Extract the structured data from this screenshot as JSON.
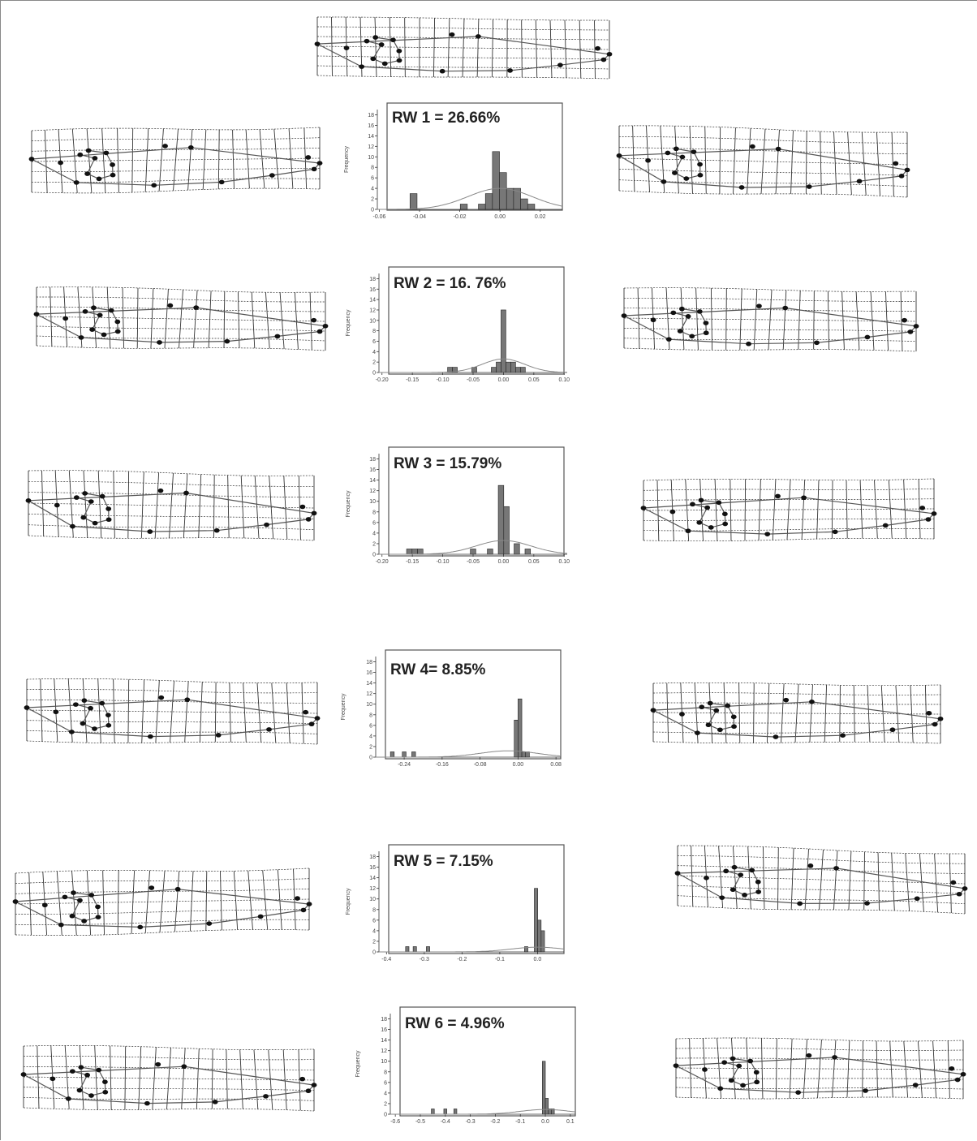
{
  "chart_data": [
    {
      "type": "bar",
      "title": "RW 1 = 26.66%",
      "ylabel": "Frequency",
      "xlabel": "",
      "xticks": [
        -0.06,
        -0.04,
        -0.02,
        0.0,
        0.02
      ],
      "xtick_labels": [
        "-0.06",
        "-0.04",
        "-0.02",
        "0.00",
        "0.02"
      ],
      "yticks": [
        0,
        2,
        4,
        6,
        8,
        10,
        12,
        14,
        16,
        18
      ],
      "xlim": [
        -0.061,
        0.031
      ],
      "ylim": [
        0,
        19
      ],
      "bin_width": 0.0035,
      "bars": [
        {
          "x": -0.043,
          "y": 3
        },
        {
          "x": -0.018,
          "y": 1
        },
        {
          "x": -0.009,
          "y": 1
        },
        {
          "x": -0.0055,
          "y": 3
        },
        {
          "x": -0.002,
          "y": 11
        },
        {
          "x": 0.0015,
          "y": 7
        },
        {
          "x": 0.005,
          "y": 4
        },
        {
          "x": 0.0085,
          "y": 4
        },
        {
          "x": 0.012,
          "y": 2
        },
        {
          "x": 0.0155,
          "y": 1
        }
      ],
      "normal_curve": {
        "mean": 0.0,
        "peak": 4.0,
        "sd": 0.016
      }
    },
    {
      "type": "bar",
      "title": "RW 2 = 16. 76%",
      "ylabel": "Frequency",
      "xlabel": "",
      "xticks": [
        -0.2,
        -0.15,
        -0.1,
        -0.05,
        0.0,
        0.05,
        0.1
      ],
      "xtick_labels": [
        "-0.20",
        "-0.15",
        "-0.10",
        "-0.05",
        "0.00",
        "0.05",
        "0.10"
      ],
      "yticks": [
        0,
        2,
        4,
        6,
        8,
        10,
        12,
        14,
        16,
        18
      ],
      "xlim": [
        -0.205,
        0.105
      ],
      "ylim": [
        0,
        19
      ],
      "bin_width": 0.008,
      "bars": [
        {
          "x": -0.088,
          "y": 1
        },
        {
          "x": -0.08,
          "y": 1
        },
        {
          "x": -0.048,
          "y": 1
        },
        {
          "x": -0.016,
          "y": 1
        },
        {
          "x": -0.008,
          "y": 2
        },
        {
          "x": 0.0,
          "y": 12
        },
        {
          "x": 0.008,
          "y": 2
        },
        {
          "x": 0.016,
          "y": 2
        },
        {
          "x": 0.024,
          "y": 1
        },
        {
          "x": 0.032,
          "y": 1
        }
      ],
      "normal_curve": {
        "mean": 0.0,
        "peak": 2.6,
        "sd": 0.035
      }
    },
    {
      "type": "bar",
      "title": "RW 3 = 15.79%",
      "ylabel": "Frequency",
      "xlabel": "",
      "xticks": [
        -0.2,
        -0.15,
        -0.1,
        -0.05,
        0.0,
        0.05,
        0.1
      ],
      "xtick_labels": [
        "-0.20",
        "-0.15",
        "-0.10",
        "-0.05",
        "0.00",
        "0.05",
        "0.10"
      ],
      "yticks": [
        0,
        2,
        4,
        6,
        8,
        10,
        12,
        14,
        16,
        18
      ],
      "xlim": [
        -0.205,
        0.105
      ],
      "ylim": [
        0,
        19
      ],
      "bin_width": 0.009,
      "bars": [
        {
          "x": -0.155,
          "y": 1
        },
        {
          "x": -0.146,
          "y": 1
        },
        {
          "x": -0.137,
          "y": 1
        },
        {
          "x": -0.05,
          "y": 1
        },
        {
          "x": -0.022,
          "y": 1
        },
        {
          "x": -0.004,
          "y": 13
        },
        {
          "x": 0.005,
          "y": 9
        },
        {
          "x": 0.022,
          "y": 2
        },
        {
          "x": 0.04,
          "y": 1
        }
      ],
      "normal_curve": {
        "mean": 0.0,
        "peak": 2.6,
        "sd": 0.045
      }
    },
    {
      "type": "bar",
      "title": "RW 4= 8.85%",
      "ylabel": "Frequency",
      "xlabel": "",
      "xticks": [
        -0.24,
        -0.16,
        -0.08,
        0.0,
        0.08
      ],
      "xtick_labels": [
        "-0.24",
        "-0.16",
        "-0.08",
        "0.00",
        "0.08"
      ],
      "yticks": [
        0,
        2,
        4,
        6,
        8,
        10,
        12,
        14,
        16,
        18
      ],
      "xlim": [
        -0.3,
        0.09
      ],
      "ylim": [
        0,
        19
      ],
      "bin_width": 0.008,
      "bars": [
        {
          "x": -0.265,
          "y": 1
        },
        {
          "x": -0.24,
          "y": 1
        },
        {
          "x": -0.22,
          "y": 1
        },
        {
          "x": -0.004,
          "y": 7
        },
        {
          "x": 0.004,
          "y": 11
        },
        {
          "x": 0.012,
          "y": 1
        },
        {
          "x": 0.02,
          "y": 1
        }
      ],
      "normal_curve": {
        "mean": -0.02,
        "peak": 1.2,
        "sd": 0.06
      }
    },
    {
      "type": "bar",
      "title": "RW 5 = 7.15%",
      "ylabel": "Frequency",
      "xlabel": "",
      "xticks": [
        -0.4,
        -0.3,
        -0.2,
        -0.1,
        0.0
      ],
      "xtick_labels": [
        "-0.4",
        "-0.3",
        "-0.2",
        "-0.1",
        "0.0"
      ],
      "yticks": [
        0,
        2,
        4,
        6,
        8,
        10,
        12,
        14,
        16,
        18
      ],
      "xlim": [
        -0.42,
        0.07
      ],
      "ylim": [
        0,
        19
      ],
      "bin_width": 0.009,
      "bars": [
        {
          "x": -0.345,
          "y": 1
        },
        {
          "x": -0.325,
          "y": 1
        },
        {
          "x": -0.29,
          "y": 1
        },
        {
          "x": -0.03,
          "y": 1
        },
        {
          "x": -0.004,
          "y": 12
        },
        {
          "x": 0.005,
          "y": 6
        },
        {
          "x": 0.014,
          "y": 4
        }
      ],
      "normal_curve": {
        "mean": 0.0,
        "peak": 0.9,
        "sd": 0.07
      }
    },
    {
      "type": "bar",
      "title": "RW 6 = 4.96%",
      "ylabel": "Frequency",
      "xlabel": "",
      "xticks": [
        -0.6,
        -0.5,
        -0.4,
        -0.3,
        -0.2,
        -0.1,
        0.0,
        0.1
      ],
      "xtick_labels": [
        "-0.6",
        "-0.5",
        "-0.4",
        "-0.3",
        "-0.2",
        "-0.1",
        "0.0",
        "0.1"
      ],
      "yticks": [
        0,
        2,
        4,
        6,
        8,
        10,
        12,
        14,
        16,
        18
      ],
      "xlim": [
        -0.62,
        0.12
      ],
      "ylim": [
        0,
        19
      ],
      "bin_width": 0.012,
      "bars": [
        {
          "x": -0.45,
          "y": 1
        },
        {
          "x": -0.4,
          "y": 1
        },
        {
          "x": -0.36,
          "y": 1
        },
        {
          "x": -0.006,
          "y": 10
        },
        {
          "x": 0.006,
          "y": 3
        },
        {
          "x": 0.018,
          "y": 1
        },
        {
          "x": 0.03,
          "y": 1
        }
      ],
      "normal_curve": {
        "mean": 0.0,
        "peak": 0.9,
        "sd": 0.1
      }
    }
  ]
}
